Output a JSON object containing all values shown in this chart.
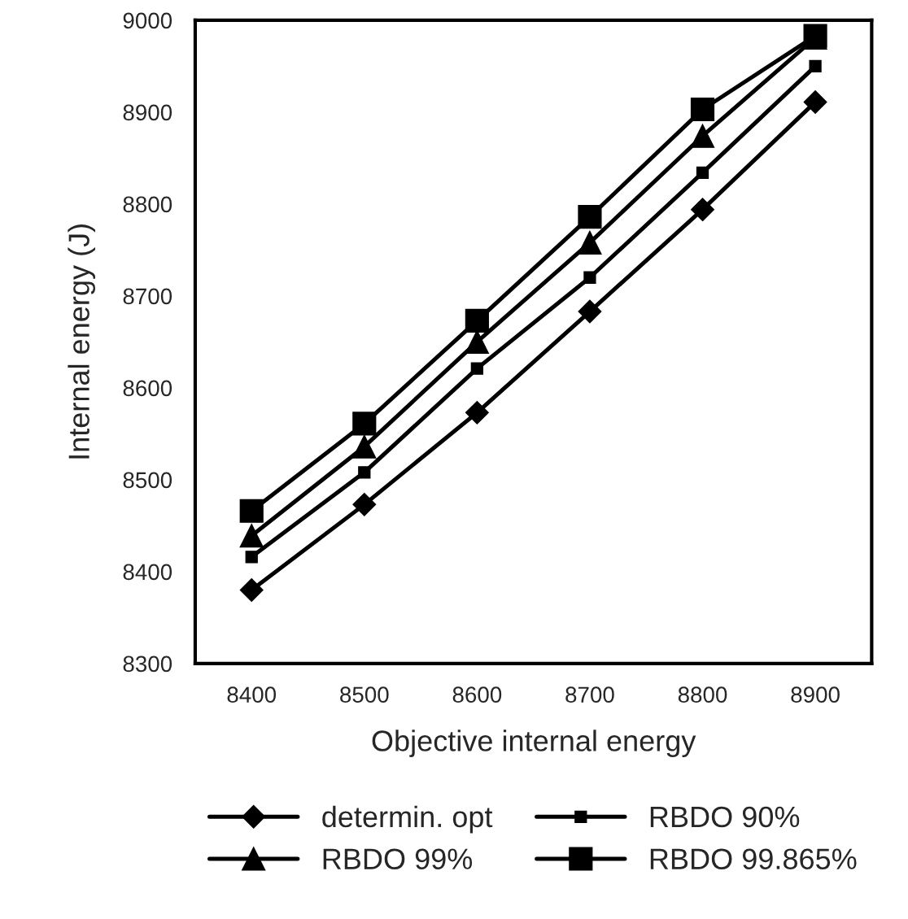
{
  "chart_data": {
    "type": "line",
    "xlabel": "Objective internal energy",
    "ylabel": "Internal energy (J)",
    "x": [
      8400,
      8500,
      8600,
      8700,
      8800,
      8900
    ],
    "xlim": [
      8350,
      8950
    ],
    "xticks": [
      8400,
      8500,
      8600,
      8700,
      8800,
      8900
    ],
    "ylim": [
      8300,
      9000
    ],
    "yticks": [
      8300,
      8400,
      8500,
      8600,
      8700,
      8800,
      8900,
      9000
    ],
    "grid": false,
    "legend": "bottom",
    "line_style": "solid",
    "series": [
      {
        "name": "determin. opt",
        "color": "#000000",
        "marker": "diamond",
        "values": [
          8380,
          8473,
          8573,
          8683,
          8794,
          8911
        ]
      },
      {
        "name": "RBDO 90%",
        "color": "#000000",
        "marker": "square",
        "values": [
          8416,
          8508,
          8621,
          8720,
          8834,
          8950
        ]
      },
      {
        "name": "RBDO 99%",
        "color": "#000000",
        "marker": "triangle",
        "values": [
          8439,
          8536,
          8650,
          8758,
          8874,
          8981
        ]
      },
      {
        "name": "RBDO 99.865%",
        "color": "#000000",
        "marker": "square",
        "values": [
          8466,
          8561,
          8673,
          8786,
          8903,
          8983
        ]
      }
    ]
  }
}
